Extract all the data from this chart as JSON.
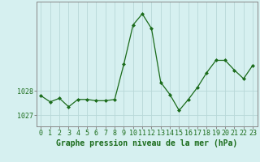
{
  "hours": [
    0,
    1,
    2,
    3,
    4,
    5,
    6,
    7,
    8,
    9,
    10,
    11,
    12,
    13,
    14,
    15,
    16,
    17,
    18,
    19,
    20,
    21,
    22,
    23
  ],
  "pressure": [
    1027.8,
    1027.55,
    1027.7,
    1027.35,
    1027.65,
    1027.65,
    1027.6,
    1027.6,
    1027.65,
    1029.1,
    1030.7,
    1031.15,
    1030.55,
    1028.35,
    1027.85,
    1027.2,
    1027.65,
    1028.15,
    1028.75,
    1029.25,
    1029.25,
    1028.85,
    1028.5,
    1029.05
  ],
  "line_color": "#1a6b1a",
  "marker": "D",
  "marker_size": 2.0,
  "bg_color": "#d6f0f0",
  "grid_color": "#b8d8d8",
  "xlabel": "Graphe pression niveau de la mer (hPa)",
  "xlabel_color": "#1a6b1a",
  "ytick_labels": [
    "1027",
    "1028"
  ],
  "ytick_values": [
    1027,
    1028
  ],
  "ylim_bottom": 1026.55,
  "ylim_top": 1031.65,
  "xlim": [
    -0.5,
    23.5
  ],
  "tick_color": "#1a6b1a",
  "axis_color": "#888888",
  "xlabel_fontsize": 7.0,
  "tick_fontsize": 6.0,
  "linewidth": 0.9
}
